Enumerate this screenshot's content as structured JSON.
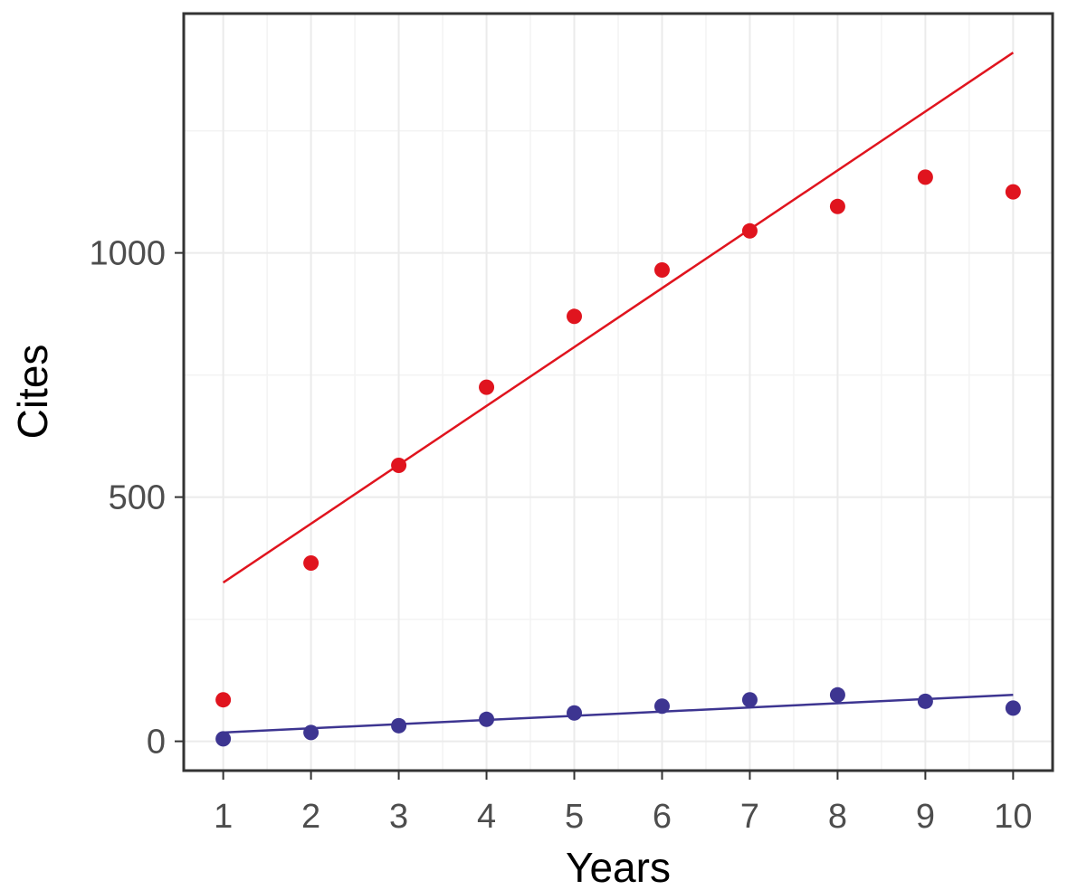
{
  "chart_data": {
    "type": "scatter",
    "xlabel": "Years",
    "ylabel": "Cites",
    "x_ticks": [
      1,
      2,
      3,
      4,
      5,
      6,
      7,
      8,
      9,
      10
    ],
    "y_ticks": [
      0,
      500,
      1000
    ],
    "xlim": [
      0.55,
      10.45
    ],
    "ylim": [
      -60,
      1490
    ],
    "grid": true,
    "legend": "none",
    "series": [
      {
        "color": "#e0141e",
        "points": {
          "x": [
            1,
            2,
            3,
            4,
            5,
            6,
            7,
            8,
            9,
            10
          ],
          "y": [
            85,
            365,
            565,
            725,
            870,
            965,
            1045,
            1095,
            1155,
            1125
          ]
        },
        "fit_line": {
          "x": [
            1,
            10
          ],
          "y": [
            325,
            1410
          ]
        }
      },
      {
        "color": "#3d3591",
        "points": {
          "x": [
            1,
            2,
            3,
            4,
            5,
            6,
            7,
            8,
            9,
            10
          ],
          "y": [
            5,
            18,
            32,
            45,
            58,
            72,
            85,
            95,
            82,
            68
          ]
        },
        "fit_line": {
          "x": [
            1,
            10
          ],
          "y": [
            18,
            95
          ]
        }
      }
    ]
  }
}
